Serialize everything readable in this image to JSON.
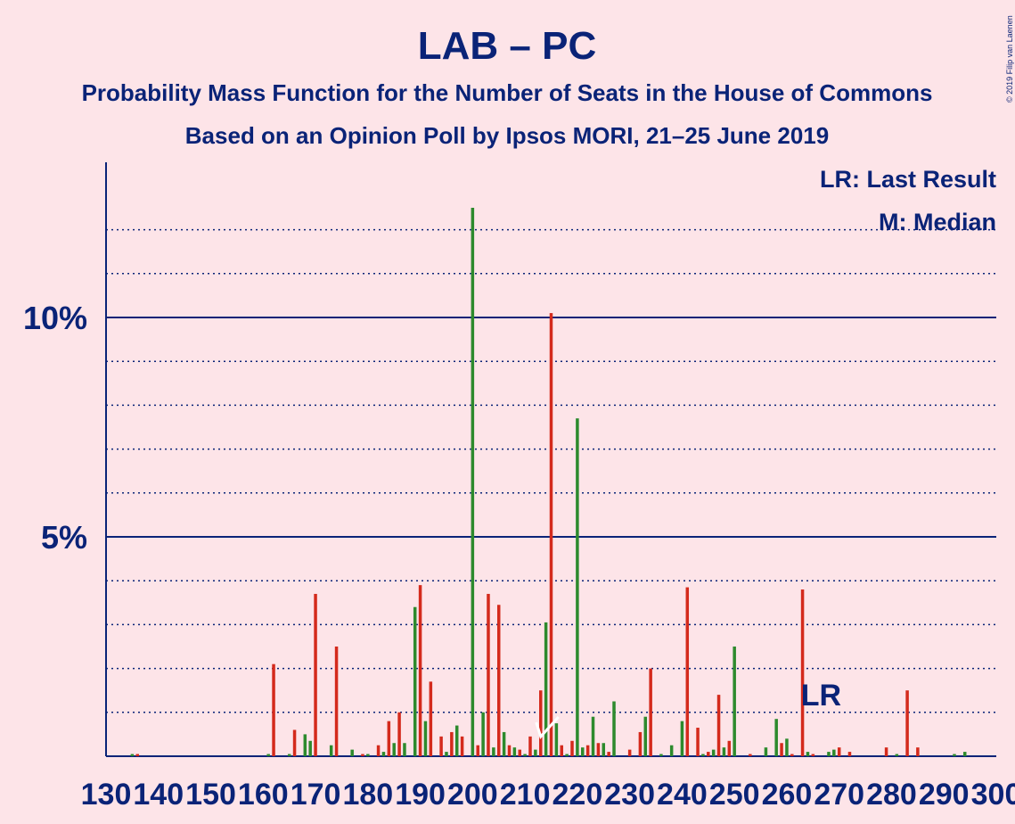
{
  "colors": {
    "background": "#fde4e8",
    "text": "#0a2377",
    "bar_red": "#d42a1c",
    "bar_green": "#2d8a2d",
    "marker_white": "#ffffff"
  },
  "header": {
    "title": "LAB – PC",
    "subtitle1": "Probability Mass Function for the Number of Seats in the House of Commons",
    "subtitle2": "Based on an Opinion Poll by Ipsos MORI, 21–25 June 2019"
  },
  "copyright": "© 2019 Filip van Laenen",
  "legend": {
    "lr": "LR: Last Result",
    "m": "M: Median",
    "placement": "top-right"
  },
  "chart_data": {
    "type": "bar",
    "xlim": [
      130,
      300
    ],
    "ylim": [
      0,
      13.5
    ],
    "y_major_ticks": [
      {
        "value": 5,
        "label": "5%"
      },
      {
        "value": 10,
        "label": "10%"
      }
    ],
    "y_minor_grid": [
      1,
      2,
      3,
      4,
      6,
      7,
      8,
      9,
      11,
      12
    ],
    "x_tick_labels": [
      "130",
      "140",
      "150",
      "160",
      "170",
      "180",
      "190",
      "200",
      "210",
      "220",
      "230",
      "240",
      "250",
      "260",
      "270",
      "280",
      "290",
      "300"
    ],
    "median": 213,
    "last_result": 262,
    "lr_label": "LR",
    "series": [
      {
        "color": "red",
        "values": [
          [
            136,
            0.05
          ],
          [
            162,
            2.1
          ],
          [
            166,
            0.6
          ],
          [
            170,
            3.7
          ],
          [
            174,
            2.5
          ],
          [
            179,
            0.05
          ],
          [
            182,
            0.25
          ],
          [
            184,
            0.8
          ],
          [
            186,
            1.0
          ],
          [
            190,
            3.9
          ],
          [
            192,
            1.7
          ],
          [
            194,
            0.45
          ],
          [
            196,
            0.55
          ],
          [
            198,
            0.45
          ],
          [
            201,
            0.25
          ],
          [
            203,
            3.7
          ],
          [
            205,
            3.45
          ],
          [
            207,
            0.25
          ],
          [
            209,
            0.15
          ],
          [
            211,
            0.45
          ],
          [
            213,
            1.5
          ],
          [
            215,
            10.1
          ],
          [
            217,
            0.25
          ],
          [
            219,
            0.35
          ],
          [
            222,
            0.25
          ],
          [
            224,
            0.3
          ],
          [
            226,
            0.1
          ],
          [
            230,
            0.15
          ],
          [
            232,
            0.55
          ],
          [
            234,
            2.0
          ],
          [
            241,
            3.85
          ],
          [
            243,
            0.65
          ],
          [
            245,
            0.1
          ],
          [
            247,
            1.4
          ],
          [
            249,
            0.35
          ],
          [
            253,
            0.05
          ],
          [
            259,
            0.3
          ],
          [
            261,
            0.05
          ],
          [
            263,
            3.8
          ],
          [
            265,
            0.05
          ],
          [
            270,
            0.2
          ],
          [
            272,
            0.1
          ],
          [
            279,
            0.2
          ],
          [
            283,
            1.5
          ],
          [
            285,
            0.2
          ]
        ]
      },
      {
        "color": "green",
        "values": [
          [
            135,
            0.05
          ],
          [
            161,
            0.05
          ],
          [
            165,
            0.05
          ],
          [
            168,
            0.5
          ],
          [
            169,
            0.35
          ],
          [
            173,
            0.25
          ],
          [
            177,
            0.15
          ],
          [
            180,
            0.05
          ],
          [
            183,
            0.1
          ],
          [
            185,
            0.3
          ],
          [
            187,
            0.3
          ],
          [
            189,
            3.4
          ],
          [
            191,
            0.8
          ],
          [
            195,
            0.1
          ],
          [
            197,
            0.7
          ],
          [
            200,
            12.5
          ],
          [
            202,
            1.0
          ],
          [
            204,
            0.2
          ],
          [
            206,
            0.55
          ],
          [
            208,
            0.2
          ],
          [
            210,
            0.05
          ],
          [
            212,
            0.15
          ],
          [
            214,
            3.05
          ],
          [
            216,
            0.75
          ],
          [
            218,
            0.05
          ],
          [
            220,
            7.7
          ],
          [
            221,
            0.2
          ],
          [
            223,
            0.9
          ],
          [
            225,
            0.3
          ],
          [
            227,
            1.25
          ],
          [
            233,
            0.9
          ],
          [
            236,
            0.05
          ],
          [
            238,
            0.25
          ],
          [
            240,
            0.8
          ],
          [
            244,
            0.05
          ],
          [
            246,
            0.15
          ],
          [
            248,
            0.2
          ],
          [
            250,
            2.5
          ],
          [
            256,
            0.2
          ],
          [
            258,
            0.85
          ],
          [
            260,
            0.4
          ],
          [
            264,
            0.1
          ],
          [
            268,
            0.1
          ],
          [
            269,
            0.15
          ],
          [
            281,
            0.05
          ],
          [
            292,
            0.05
          ],
          [
            294,
            0.1
          ]
        ]
      }
    ]
  }
}
